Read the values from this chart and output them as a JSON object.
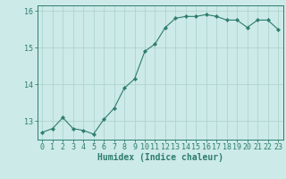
{
  "x": [
    0,
    1,
    2,
    3,
    4,
    5,
    6,
    7,
    8,
    9,
    10,
    11,
    12,
    13,
    14,
    15,
    16,
    17,
    18,
    19,
    20,
    21,
    22,
    23
  ],
  "y": [
    12.7,
    12.8,
    13.1,
    12.8,
    12.75,
    12.65,
    13.05,
    13.35,
    13.9,
    14.15,
    14.9,
    15.1,
    15.55,
    15.8,
    15.85,
    15.85,
    15.9,
    15.85,
    15.75,
    15.75,
    15.55,
    15.75,
    15.75,
    15.5
  ],
  "line_color": "#2d7d6e",
  "marker": "D",
  "marker_size": 2.2,
  "bg_color": "#cceae7",
  "grid_color": "#b0d4d0",
  "axis_color": "#2d7d6e",
  "xlabel": "Humidex (Indice chaleur)",
  "ylim": [
    12.5,
    16.15
  ],
  "yticks": [
    13,
    14,
    15,
    16
  ],
  "xticks": [
    0,
    1,
    2,
    3,
    4,
    5,
    6,
    7,
    8,
    9,
    10,
    11,
    12,
    13,
    14,
    15,
    16,
    17,
    18,
    19,
    20,
    21,
    22,
    23
  ],
  "xlabel_fontsize": 7.0,
  "tick_fontsize": 6.0,
  "tick_color": "#2d7d6e"
}
